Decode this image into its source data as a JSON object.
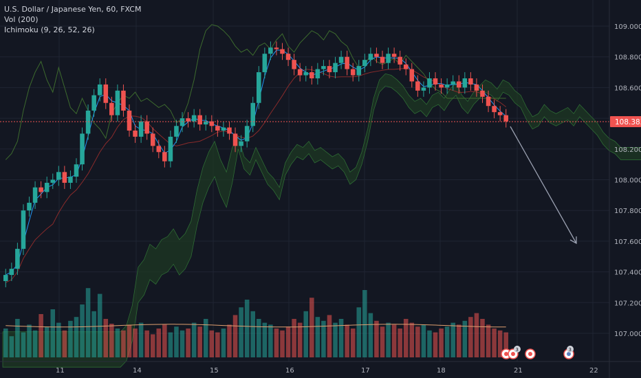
{
  "legend": {
    "symbol": "U.S. Dollar / Japanese Yen, 60, FXCM",
    "volume": "Vol (200)",
    "ichimoku": "Ichimoku (9, 26, 52, 26)"
  },
  "colors": {
    "background": "#131722",
    "grid": "#1f2433",
    "up": "#26a69a",
    "down": "#ef5350",
    "tenkan": "#2196f3",
    "kijun": "#8a2b2b",
    "lagging": "#3d6b2e",
    "cloud_bull": "#1e3a22",
    "cloud_bear": "#3a1e22",
    "last_price_bg": "#ef5350",
    "arrow": "#9aa0b0",
    "vol_ma": "#e0a070"
  },
  "chart_data": {
    "type": "candlestick",
    "title": "U.S. Dollar / Japanese Yen, 60, FXCM",
    "ylim": [
      106.85,
      109.12
    ],
    "y_ticks": [
      "109.000",
      "108.800",
      "108.600",
      "108.400",
      "108.200",
      "108.000",
      "107.800",
      "107.600",
      "107.400",
      "107.200",
      "107.000"
    ],
    "x_ticks": [
      "11",
      "14",
      "15",
      "16",
      "17",
      "18",
      "21",
      "22"
    ],
    "last_price": "108.383",
    "forecast_arrow": {
      "from": 108.38,
      "to": 107.58
    },
    "event_badge_count": "3",
    "candles_close": [
      107.38,
      107.42,
      107.55,
      107.8,
      107.85,
      107.95,
      107.92,
      107.98,
      108.0,
      108.05,
      107.98,
      108.02,
      108.1,
      108.3,
      108.45,
      108.55,
      108.62,
      108.5,
      108.42,
      108.58,
      108.45,
      108.32,
      108.28,
      108.38,
      108.3,
      108.22,
      108.18,
      108.12,
      108.28,
      108.35,
      108.4,
      108.38,
      108.42,
      108.36,
      108.38,
      108.35,
      108.32,
      108.34,
      108.3,
      108.22,
      108.25,
      108.35,
      108.5,
      108.7,
      108.82,
      108.86,
      108.85,
      108.82,
      108.78,
      108.72,
      108.68,
      108.7,
      108.66,
      108.72,
      108.74,
      108.7,
      108.76,
      108.8,
      108.72,
      108.68,
      108.74,
      108.78,
      108.82,
      108.8,
      108.76,
      108.82,
      108.8,
      108.75,
      108.72,
      108.64,
      108.58,
      108.6,
      108.66,
      108.62,
      108.6,
      108.62,
      108.64,
      108.6,
      108.66,
      108.62,
      108.58,
      108.54,
      108.48,
      108.44,
      108.42,
      108.38
    ],
    "volume": [
      0.3,
      0.22,
      0.4,
      0.26,
      0.34,
      0.28,
      0.45,
      0.32,
      0.5,
      0.36,
      0.28,
      0.38,
      0.42,
      0.55,
      0.72,
      0.48,
      0.66,
      0.4,
      0.35,
      0.3,
      0.28,
      0.34,
      0.3,
      0.36,
      0.28,
      0.24,
      0.3,
      0.34,
      0.26,
      0.32,
      0.28,
      0.3,
      0.36,
      0.32,
      0.4,
      0.28,
      0.26,
      0.3,
      0.34,
      0.44,
      0.52,
      0.6,
      0.48,
      0.4,
      0.36,
      0.34,
      0.3,
      0.28,
      0.32,
      0.4,
      0.36,
      0.48,
      0.62,
      0.42,
      0.38,
      0.44,
      0.36,
      0.4,
      0.34,
      0.3,
      0.52,
      0.7,
      0.46,
      0.38,
      0.32,
      0.36,
      0.34,
      0.3,
      0.4,
      0.36,
      0.32,
      0.34,
      0.28,
      0.26,
      0.3,
      0.32,
      0.36,
      0.34,
      0.38,
      0.42,
      0.46,
      0.4,
      0.34,
      0.3,
      0.28,
      0.26
    ]
  }
}
